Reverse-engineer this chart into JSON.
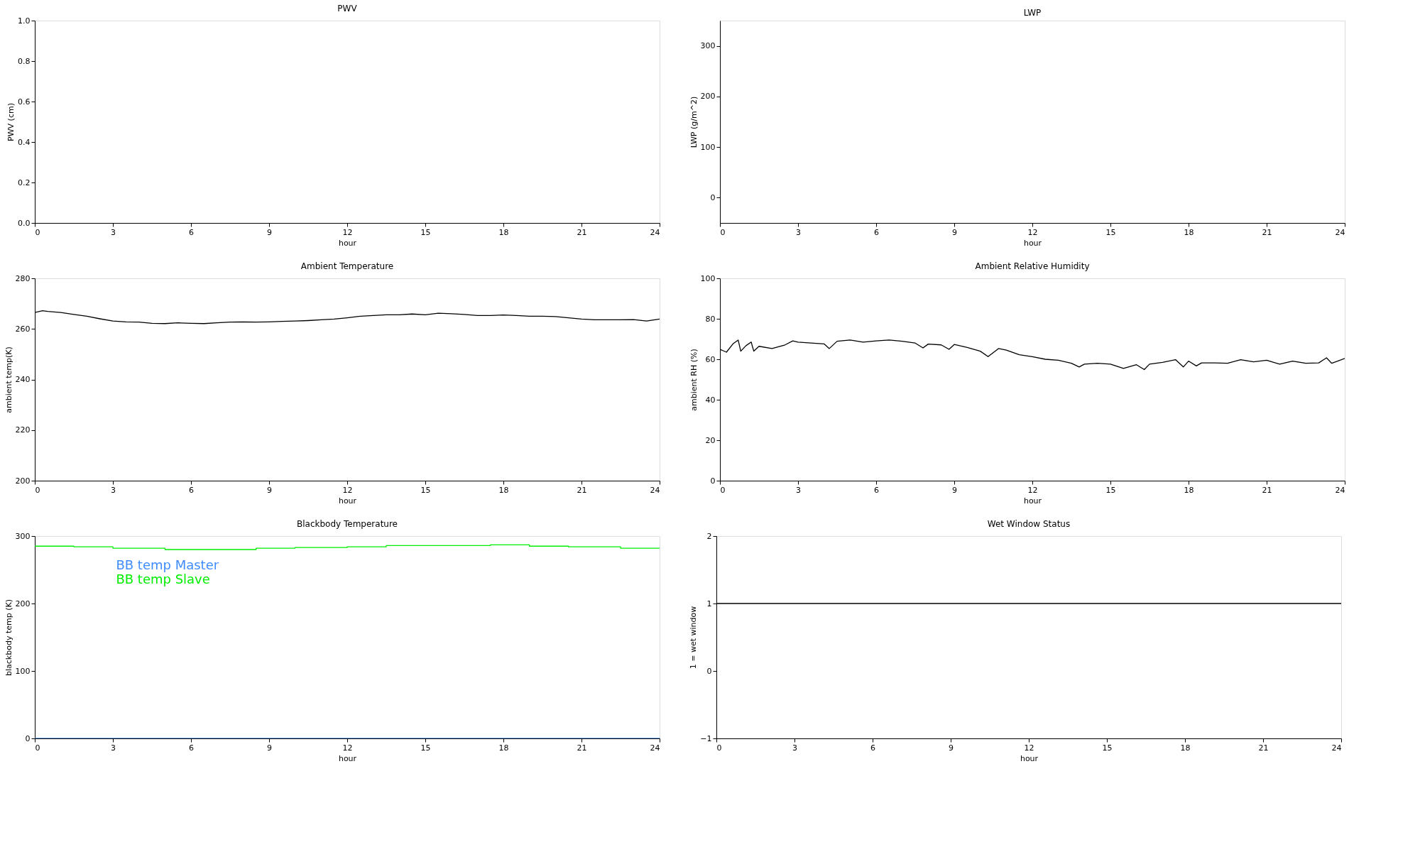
{
  "chart_data": [
    {
      "type": "line",
      "title": "PWV",
      "xlabel": "hour",
      "ylabel": "PWV (cm)",
      "xlim": [
        0,
        24
      ],
      "xticks": [
        0,
        3,
        6,
        9,
        12,
        15,
        18,
        21,
        24
      ],
      "ylim": [
        0,
        1
      ],
      "yticks": [
        {
          "value": 0,
          "label": "0.0"
        },
        {
          "value": 0.2,
          "label": "0.2"
        },
        {
          "value": 0.4,
          "label": "0.4"
        },
        {
          "value": 0.6,
          "label": "0.6"
        },
        {
          "value": 0.8,
          "label": "0.8"
        },
        {
          "value": 1,
          "label": "1.0"
        }
      ]
    },
    {
      "type": "line",
      "title": "LWP",
      "xlabel": "hour",
      "ylabel": "LWP (g/m^2)",
      "xlim": [
        0,
        24
      ],
      "xticks": [
        0,
        3,
        6,
        9,
        12,
        15,
        18,
        21,
        24
      ],
      "ylim": [
        -50,
        350
      ],
      "yticks": [
        0,
        100,
        200,
        300
      ]
    },
    {
      "type": "line",
      "title": "Ambient Temperature",
      "xlabel": "hour",
      "ylabel": "ambient temp(K)",
      "xlim": [
        0,
        24
      ],
      "xticks": [
        0,
        3,
        6,
        9,
        12,
        15,
        18,
        21,
        24
      ],
      "ylim": [
        200,
        280
      ],
      "yticks": [
        200,
        220,
        240,
        260,
        280
      ],
      "series": [
        {
          "color": "#000000",
          "x": [
            0,
            0.3,
            0.5,
            1,
            1.5,
            2,
            2.5,
            3,
            3.5,
            4,
            4.5,
            5,
            5.5,
            6,
            6.5,
            7,
            7.5,
            8,
            8.5,
            9,
            9.5,
            10,
            10.5,
            11,
            11.5,
            12,
            12.5,
            13,
            13.5,
            14,
            14.5,
            15,
            15.5,
            16,
            16.5,
            17,
            17.5,
            18,
            18.5,
            19,
            19.5,
            20,
            20.5,
            21,
            21.5,
            22,
            22.5,
            23,
            23.5,
            24
          ],
          "values": [
            266.5,
            267.2,
            266.9,
            266.5,
            265.7,
            265.0,
            264.0,
            263.1,
            262.8,
            262.7,
            262.2,
            262.1,
            262.4,
            262.2,
            262.1,
            262.4,
            262.7,
            262.8,
            262.7,
            262.8,
            263.0,
            263.1,
            263.3,
            263.6,
            263.9,
            264.4,
            265.0,
            265.3,
            265.6,
            265.6,
            265.9,
            265.6,
            266.2,
            266.0,
            265.7,
            265.3,
            265.3,
            265.5,
            265.3,
            265.0,
            265.0,
            264.9,
            264.4,
            263.9,
            263.6,
            263.6,
            263.6,
            263.7,
            263.1,
            263.9
          ]
        }
      ]
    },
    {
      "type": "line",
      "title": "Ambient Relative Humidity",
      "xlabel": "hour",
      "ylabel": "ambient RH (%)",
      "xlim": [
        0,
        24
      ],
      "xticks": [
        0,
        3,
        6,
        9,
        12,
        15,
        18,
        21,
        24
      ],
      "ylim": [
        0,
        100
      ],
      "yticks": [
        0,
        20,
        40,
        60,
        80,
        100
      ],
      "series": [
        {
          "color": "#000000",
          "x": [
            0,
            0.25,
            0.5,
            0.7,
            0.8,
            1,
            1.2,
            1.3,
            1.5,
            2,
            2.5,
            2.8,
            3,
            3.5,
            4,
            4.2,
            4.5,
            5,
            5.5,
            6,
            6.5,
            7,
            7.5,
            7.8,
            8,
            8.5,
            8.8,
            9,
            9.5,
            10,
            10.3,
            10.7,
            11,
            11.5,
            12,
            12.5,
            13,
            13.5,
            13.8,
            14,
            14.5,
            15,
            15.5,
            16,
            16.3,
            16.5,
            17,
            17.5,
            17.8,
            18,
            18.3,
            18.5,
            19,
            19.5,
            20,
            20.5,
            21,
            21.5,
            22,
            22.5,
            23,
            23.3,
            23.5,
            24
          ],
          "values": [
            64.9,
            63.5,
            67.6,
            69.5,
            64.0,
            66.7,
            68.5,
            64.0,
            66.4,
            65.3,
            67.1,
            69.1,
            68.5,
            68.0,
            67.6,
            65.3,
            68.9,
            69.5,
            68.5,
            69.1,
            69.5,
            68.9,
            68.0,
            65.6,
            67.5,
            67.1,
            64.9,
            67.3,
            65.8,
            64.0,
            61.3,
            65.3,
            64.5,
            62.2,
            61.3,
            60.0,
            59.5,
            58.0,
            56.2,
            57.6,
            58.0,
            57.6,
            55.5,
            57.3,
            54.9,
            57.6,
            58.5,
            59.8,
            56.2,
            59.1,
            56.7,
            58.2,
            58.2,
            58.0,
            59.8,
            58.7,
            59.5,
            57.6,
            59.1,
            58.0,
            58.2,
            60.7,
            58.0,
            60.4
          ]
        }
      ]
    },
    {
      "type": "line",
      "title": "Blackbody Temperature",
      "xlabel": "hour",
      "ylabel": "blackbody temp (K)",
      "xlim": [
        0,
        24
      ],
      "xticks": [
        0,
        3,
        6,
        9,
        12,
        15,
        18,
        21,
        24
      ],
      "ylim": [
        0,
        300
      ],
      "yticks": [
        0,
        100,
        200,
        300
      ],
      "legend": "top left",
      "series": [
        {
          "name": "BB temp Master",
          "color": "#3f8cff",
          "x": [
            0,
            24
          ],
          "values": [
            0,
            0
          ]
        },
        {
          "name": "BB temp Slave",
          "color": "#00ee00",
          "type": "step",
          "x": [
            0,
            1.5,
            3,
            5,
            7,
            8.5,
            10,
            12,
            13.5,
            17.5,
            19,
            20.5,
            22.5,
            24
          ],
          "values": [
            285,
            284,
            282,
            280,
            280,
            282,
            283,
            284,
            286,
            287,
            285,
            284,
            282,
            282
          ]
        }
      ]
    },
    {
      "type": "line",
      "title": "Wet Window Status",
      "xlabel": "hour",
      "ylabel": "1 = wet window",
      "xlim": [
        0,
        24
      ],
      "xticks": [
        0,
        3,
        6,
        9,
        12,
        15,
        18,
        21,
        24
      ],
      "ylim": [
        -1,
        2
      ],
      "yticks": [
        -1,
        0,
        1,
        2
      ],
      "series": [
        {
          "color": "#000000",
          "x": [
            0,
            24
          ],
          "values": [
            1,
            1
          ]
        }
      ]
    }
  ]
}
